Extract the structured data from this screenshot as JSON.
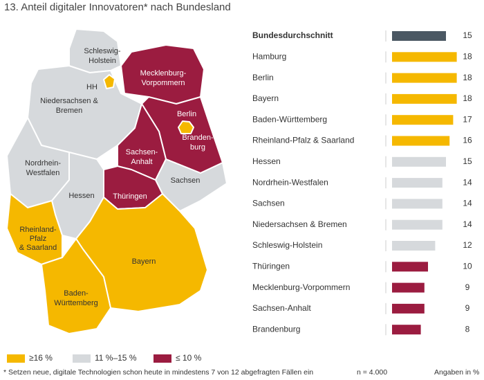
{
  "chart_data": [
    {
      "type": "bar",
      "title": "13. Anteil digitaler Innovatoren* nach Bundesland",
      "categories": [
        "Bundesdurchschnitt",
        "Hamburg",
        "Berlin",
        "Bayern",
        "Baden-Württemberg",
        "Rheinland-Pfalz & Saarland",
        "Hessen",
        "Nordrhein-Westfalen",
        "Sachsen",
        "Niedersachsen & Bremen",
        "Schleswig-Holstein",
        "Thüringen",
        "Mecklenburg-Vorpommern",
        "Sachsen-Anhalt",
        "Brandenburg"
      ],
      "values": [
        15,
        18,
        18,
        18,
        17,
        16,
        15,
        14,
        14,
        14,
        12,
        10,
        9,
        9,
        8
      ],
      "colors": [
        "#4b5863",
        "#f5b800",
        "#f5b800",
        "#f5b800",
        "#f5b800",
        "#f5b800",
        "#d6d9dc",
        "#d6d9dc",
        "#d6d9dc",
        "#d6d9dc",
        "#d6d9dc",
        "#9b1c40",
        "#9b1c40",
        "#9b1c40",
        "#9b1c40"
      ]
    },
    {
      "type": "map",
      "regions": [
        {
          "label": [
            "Schleswig-",
            "Holstein"
          ],
          "color": "#d6d9dc"
        },
        {
          "label": [
            "Mecklenburg-",
            "Vorpommern"
          ],
          "color": "#9b1c40"
        },
        {
          "label": [
            "Niedersachsen &",
            "Bremen"
          ],
          "color": "#d6d9dc"
        },
        {
          "label": [
            "Branden-",
            "burg"
          ],
          "color": "#9b1c40"
        },
        {
          "label": [
            "Sachsen-",
            "Anhalt"
          ],
          "color": "#9b1c40"
        },
        {
          "label": [
            "Sachsen"
          ],
          "color": "#d6d9dc"
        },
        {
          "label": [
            "Thüringen"
          ],
          "color": "#9b1c40"
        },
        {
          "label": [
            "Nordrhein-",
            "Westfalen"
          ],
          "color": "#d6d9dc"
        },
        {
          "label": [
            "Hessen"
          ],
          "color": "#d6d9dc"
        },
        {
          "label": [
            "Rheinland-",
            "Pfalz",
            "& Saarland"
          ],
          "color": "#f5b800"
        },
        {
          "label": [
            "Bayern"
          ],
          "color": "#f5b800"
        },
        {
          "label": [
            "Baden-",
            "Württemberg"
          ],
          "color": "#f5b800"
        },
        {
          "label": [
            "HH"
          ],
          "color": "#f5b800"
        },
        {
          "label": [
            "Berlin"
          ],
          "color": "#f5b800"
        }
      ],
      "legend": [
        {
          "label": "≥16 %",
          "color": "#f5b800"
        },
        {
          "label": "11 %–15 %",
          "color": "#d6d9dc"
        },
        {
          "label": "≤ 10 %",
          "color": "#9b1c40"
        }
      ]
    }
  ],
  "footer": {
    "note": "* Setzen neue, digitale Technologien schon heute in mindestens 7 von 12 abgefragten Fällen ein",
    "sample": "n = 4.000",
    "unit": "Angaben in %"
  }
}
